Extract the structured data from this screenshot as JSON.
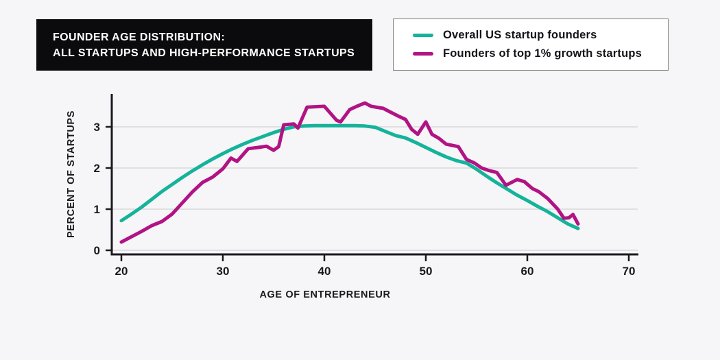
{
  "page": {
    "background": "#f6f5f7"
  },
  "title": {
    "line1": "FOUNDER AGE DISTRIBUTION:",
    "line2": "ALL STARTUPS AND HIGH-PERFORMANCE STARTUPS",
    "bg_color": "#0b0a0c",
    "text_color": "#ffffff"
  },
  "legend": {
    "items": [
      {
        "label": "Overall US startup founders",
        "color": "#14b39a"
      },
      {
        "label": "Founders of top 1% growth startups",
        "color": "#b11384"
      }
    ]
  },
  "chart_data": {
    "type": "line",
    "title": "Founder age distribution: all startups and high-performance startups",
    "xlabel": "AGE OF ENTREPRENEUR",
    "ylabel": "PERCENT OF STARTUPS",
    "x_ticks": [
      20,
      30,
      40,
      50,
      60,
      70
    ],
    "y_ticks": [
      0,
      1,
      2,
      3
    ],
    "xlim": [
      20,
      70
    ],
    "ylim": [
      0,
      3.78
    ],
    "grid": "horizontal",
    "legend_position": "top-right",
    "colors": {
      "axis": "#1b191f",
      "gridline": "#d9d8dc"
    },
    "series": [
      {
        "name": "Overall US startup founders",
        "color": "#14b39a",
        "points": [
          [
            20,
            0.72
          ],
          [
            21,
            0.88
          ],
          [
            22,
            1.05
          ],
          [
            23,
            1.24
          ],
          [
            24,
            1.43
          ],
          [
            25,
            1.6
          ],
          [
            26,
            1.77
          ],
          [
            27,
            1.93
          ],
          [
            28,
            2.08
          ],
          [
            29,
            2.22
          ],
          [
            30,
            2.35
          ],
          [
            31,
            2.47
          ],
          [
            32,
            2.58
          ],
          [
            33,
            2.68
          ],
          [
            34,
            2.77
          ],
          [
            35,
            2.86
          ],
          [
            36,
            2.94
          ],
          [
            37,
            3.0
          ],
          [
            38,
            3.02
          ],
          [
            39,
            3.03
          ],
          [
            40,
            3.03
          ],
          [
            41,
            3.03
          ],
          [
            42,
            3.03
          ],
          [
            43,
            3.03
          ],
          [
            44,
            3.02
          ],
          [
            45,
            2.99
          ],
          [
            46,
            2.89
          ],
          [
            47,
            2.79
          ],
          [
            48,
            2.73
          ],
          [
            49,
            2.62
          ],
          [
            50,
            2.5
          ],
          [
            51,
            2.38
          ],
          [
            52,
            2.27
          ],
          [
            53,
            2.18
          ],
          [
            54,
            2.12
          ],
          [
            55,
            1.97
          ],
          [
            56,
            1.8
          ],
          [
            57,
            1.64
          ],
          [
            58,
            1.49
          ],
          [
            59,
            1.34
          ],
          [
            60,
            1.21
          ],
          [
            61,
            1.07
          ],
          [
            62,
            0.94
          ],
          [
            63,
            0.79
          ],
          [
            64,
            0.64
          ],
          [
            65,
            0.53
          ]
        ]
      },
      {
        "name": "Founders of top 1% growth startups",
        "color": "#b11384",
        "points": [
          [
            20,
            0.2
          ],
          [
            21,
            0.33
          ],
          [
            22,
            0.46
          ],
          [
            23,
            0.6
          ],
          [
            24,
            0.7
          ],
          [
            25,
            0.88
          ],
          [
            26,
            1.15
          ],
          [
            27,
            1.42
          ],
          [
            28,
            1.65
          ],
          [
            29,
            1.78
          ],
          [
            30,
            1.98
          ],
          [
            30.8,
            2.24
          ],
          [
            31.4,
            2.16
          ],
          [
            32,
            2.33
          ],
          [
            32.5,
            2.47
          ],
          [
            33.5,
            2.5
          ],
          [
            34.3,
            2.53
          ],
          [
            35,
            2.43
          ],
          [
            35.5,
            2.52
          ],
          [
            36,
            3.05
          ],
          [
            37,
            3.07
          ],
          [
            37.4,
            2.97
          ],
          [
            38.3,
            3.48
          ],
          [
            40,
            3.5
          ],
          [
            41.2,
            3.16
          ],
          [
            41.6,
            3.12
          ],
          [
            42.5,
            3.42
          ],
          [
            43.2,
            3.5
          ],
          [
            44,
            3.58
          ],
          [
            44.6,
            3.5
          ],
          [
            45.8,
            3.45
          ],
          [
            46.5,
            3.36
          ],
          [
            47.3,
            3.26
          ],
          [
            48,
            3.18
          ],
          [
            48.6,
            2.94
          ],
          [
            49.2,
            2.82
          ],
          [
            50,
            3.12
          ],
          [
            50.6,
            2.82
          ],
          [
            51.3,
            2.72
          ],
          [
            52,
            2.58
          ],
          [
            53.2,
            2.52
          ],
          [
            54,
            2.21
          ],
          [
            54.8,
            2.12
          ],
          [
            55.5,
            2.0
          ],
          [
            56.2,
            1.94
          ],
          [
            57,
            1.89
          ],
          [
            57.9,
            1.58
          ],
          [
            59,
            1.72
          ],
          [
            59.7,
            1.67
          ],
          [
            60.5,
            1.5
          ],
          [
            61.1,
            1.43
          ],
          [
            62,
            1.26
          ],
          [
            63,
            1.0
          ],
          [
            63.6,
            0.78
          ],
          [
            64.1,
            0.79
          ],
          [
            64.5,
            0.87
          ],
          [
            65,
            0.64
          ]
        ]
      }
    ]
  }
}
